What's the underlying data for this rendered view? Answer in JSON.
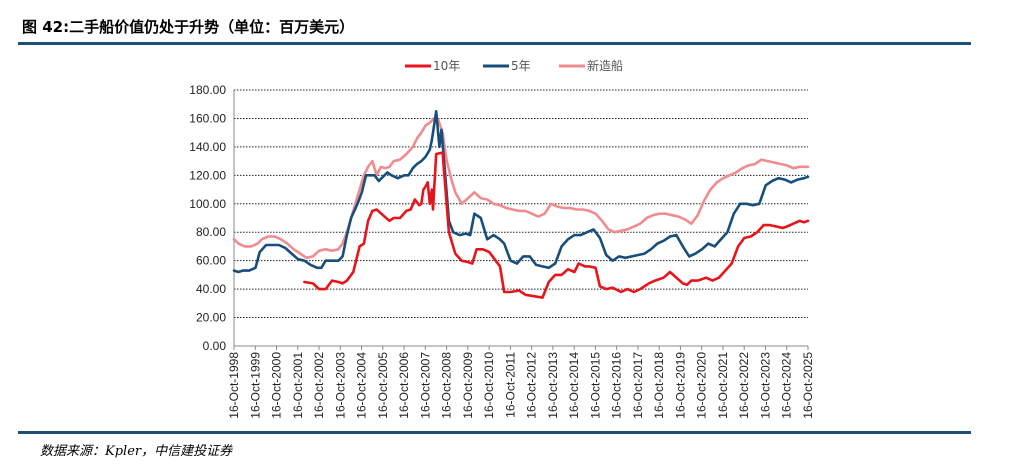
{
  "title": "图 42:二手船价值仍处于升势（单位：百万美元）",
  "source": "数据来源：Kpler，中信建投证券",
  "colors": {
    "series_10y": "#e8141c",
    "series_5y": "#174e7c",
    "series_new": "#f08c8f",
    "rule": "#1f4e79"
  },
  "chart_data": {
    "type": "line",
    "title": "",
    "xlabel": "",
    "ylabel": "",
    "ylim": [
      0,
      180
    ],
    "yticks": [
      "0.00",
      "20.00",
      "40.00",
      "60.00",
      "80.00",
      "100.00",
      "120.00",
      "140.00",
      "160.00",
      "180.00"
    ],
    "xlim": [
      1998.79,
      2025.79
    ],
    "xticks": [
      "16-Oct-1998",
      "16-Oct-1999",
      "16-Oct-2000",
      "16-Oct-2001",
      "16-Oct-2002",
      "16-Oct-2003",
      "16-Oct-2004",
      "16-Oct-2005",
      "16-Oct-2006",
      "16-Oct-2007",
      "16-Oct-2008",
      "16-Oct-2009",
      "16-Oct-2010",
      "16-Oct-2011",
      "16-Oct-2012",
      "16-Oct-2013",
      "16-Oct-2014",
      "16-Oct-2015",
      "16-Oct-2016",
      "16-Oct-2017",
      "16-Oct-2018",
      "16-Oct-2019",
      "16-Oct-2020",
      "16-Oct-2021",
      "16-Oct-2022",
      "16-Oct-2023",
      "16-Oct-2024",
      "16-Oct-2025"
    ],
    "grid": "horizontal-dotted",
    "legend_position": "top-center",
    "series": [
      {
        "name": "10年",
        "x": [
          2002.1,
          2002.5,
          2002.8,
          2003.1,
          2003.4,
          2003.7,
          2003.9,
          2004.1,
          2004.4,
          2004.7,
          2004.9,
          2005.1,
          2005.3,
          2005.5,
          2005.8,
          2006.1,
          2006.3,
          2006.6,
          2006.9,
          2007.1,
          2007.3,
          2007.5,
          2007.6,
          2007.7,
          2007.8,
          2007.9,
          2008.0,
          2008.1,
          2008.15,
          2008.3,
          2008.6,
          2008.9,
          2009.2,
          2009.5,
          2009.8,
          2010.0,
          2010.2,
          2010.5,
          2010.8,
          2011.1,
          2011.3,
          2011.5,
          2011.8,
          2012.2,
          2012.5,
          2012.9,
          2013.3,
          2013.6,
          2013.9,
          2014.2,
          2014.5,
          2014.8,
          2015.0,
          2015.3,
          2015.5,
          2015.8,
          2016.0,
          2016.3,
          2016.6,
          2017.0,
          2017.3,
          2017.6,
          2017.9,
          2018.3,
          2018.6,
          2019.0,
          2019.3,
          2019.6,
          2019.9,
          2020.1,
          2020.3,
          2020.6,
          2021.0,
          2021.3,
          2021.6,
          2021.9,
          2022.2,
          2022.5,
          2022.8,
          2023.1,
          2023.4,
          2023.7,
          2024.0,
          2024.3,
          2024.6,
          2024.8,
          2025.1,
          2025.4,
          2025.6,
          2025.79
        ],
        "values": [
          45,
          44,
          40,
          40,
          46,
          45,
          44,
          46,
          52,
          70,
          72,
          88,
          95,
          96,
          92,
          88,
          90,
          90,
          95,
          96,
          103,
          99,
          100,
          110,
          112,
          115,
          100,
          110,
          96,
          135,
          136,
          80,
          65,
          60,
          59,
          58,
          68,
          68,
          66,
          60,
          56,
          38,
          38,
          39,
          36,
          35,
          34,
          45,
          50,
          50,
          54,
          52,
          58,
          56,
          56,
          55,
          42,
          40,
          41,
          38,
          40,
          38,
          40,
          44,
          46,
          48,
          52,
          48,
          44,
          43,
          46,
          46,
          48,
          46,
          48,
          53,
          58,
          70,
          76,
          77,
          80,
          85,
          85,
          84,
          83,
          84,
          86,
          88,
          87,
          88
        ]
      },
      {
        "name": "5年",
        "x": [
          1998.79,
          1999.0,
          1999.2,
          1999.5,
          1999.8,
          2000.0,
          2000.3,
          2000.6,
          2000.9,
          2001.2,
          2001.5,
          2001.8,
          2002.1,
          2002.4,
          2002.7,
          2002.9,
          2003.1,
          2003.4,
          2003.7,
          2003.9,
          2004.1,
          2004.3,
          2004.6,
          2004.8,
          2005.0,
          2005.2,
          2005.4,
          2005.6,
          2005.8,
          2006.0,
          2006.2,
          2006.5,
          2006.8,
          2007.0,
          2007.2,
          2007.4,
          2007.6,
          2007.8,
          2008.0,
          2008.1,
          2008.3,
          2008.45,
          2008.55,
          2008.7,
          2008.9,
          2009.1,
          2009.4,
          2009.7,
          2009.9,
          2010.1,
          2010.4,
          2010.7,
          2011.0,
          2011.3,
          2011.5,
          2011.8,
          2012.1,
          2012.4,
          2012.7,
          2013.0,
          2013.3,
          2013.6,
          2013.9,
          2014.2,
          2014.5,
          2014.8,
          2015.1,
          2015.4,
          2015.7,
          2016.0,
          2016.3,
          2016.6,
          2016.9,
          2017.2,
          2017.5,
          2017.8,
          2018.1,
          2018.4,
          2018.7,
          2019.0,
          2019.3,
          2019.6,
          2019.9,
          2020.2,
          2020.5,
          2020.8,
          2021.1,
          2021.4,
          2021.7,
          2022.0,
          2022.3,
          2022.6,
          2022.9,
          2023.2,
          2023.5,
          2023.8,
          2024.1,
          2024.4,
          2024.7,
          2025.0,
          2025.3,
          2025.6,
          2025.79
        ],
        "values": [
          53,
          52,
          53,
          53,
          55,
          66,
          71,
          71,
          71,
          69,
          65,
          61,
          60,
          57,
          55,
          55,
          60,
          60,
          60,
          63,
          78,
          90,
          100,
          108,
          120,
          120,
          120,
          116,
          119,
          122,
          120,
          118,
          120,
          120,
          125,
          128,
          130,
          133,
          138,
          145,
          165,
          140,
          152,
          125,
          88,
          80,
          78,
          79,
          78,
          93,
          90,
          75,
          78,
          75,
          72,
          60,
          58,
          63,
          63,
          57,
          56,
          55,
          58,
          70,
          75,
          78,
          78,
          80,
          82,
          76,
          64,
          60,
          63,
          62,
          63,
          64,
          65,
          68,
          72,
          74,
          77,
          78,
          70,
          63,
          65,
          68,
          72,
          70,
          75,
          80,
          93,
          100,
          100,
          99,
          100,
          113,
          116,
          118,
          117,
          115,
          117,
          118,
          119
        ]
      },
      {
        "name": "新造船",
        "x": [
          1998.79,
          1999.0,
          1999.3,
          1999.6,
          1999.9,
          2000.1,
          2000.4,
          2000.7,
          2001.0,
          2001.3,
          2001.6,
          2001.9,
          2002.2,
          2002.5,
          2002.8,
          2003.1,
          2003.4,
          2003.7,
          2003.9,
          2004.1,
          2004.3,
          2004.5,
          2004.7,
          2004.9,
          2005.1,
          2005.3,
          2005.5,
          2005.7,
          2005.9,
          2006.1,
          2006.3,
          2006.6,
          2006.9,
          2007.2,
          2007.4,
          2007.6,
          2007.8,
          2008.0,
          2008.2,
          2008.4,
          2008.6,
          2008.8,
          2009.0,
          2009.2,
          2009.5,
          2009.8,
          2010.1,
          2010.4,
          2010.7,
          2011.0,
          2011.3,
          2011.6,
          2011.9,
          2012.2,
          2012.5,
          2012.8,
          2013.1,
          2013.4,
          2013.7,
          2014.0,
          2014.3,
          2014.6,
          2014.9,
          2015.2,
          2015.5,
          2015.8,
          2016.1,
          2016.4,
          2016.7,
          2017.0,
          2017.3,
          2017.6,
          2017.9,
          2018.2,
          2018.5,
          2018.8,
          2019.1,
          2019.4,
          2019.7,
          2020.0,
          2020.3,
          2020.6,
          2020.9,
          2021.2,
          2021.5,
          2021.8,
          2022.1,
          2022.4,
          2022.7,
          2023.0,
          2023.3,
          2023.6,
          2023.9,
          2024.2,
          2024.5,
          2024.8,
          2025.1,
          2025.4,
          2025.79
        ],
        "values": [
          75,
          72,
          70,
          70,
          72,
          75,
          77,
          77,
          75,
          72,
          68,
          65,
          62,
          63,
          67,
          68,
          67,
          68,
          72,
          80,
          90,
          100,
          110,
          120,
          126,
          130,
          120,
          126,
          125,
          126,
          130,
          131,
          135,
          140,
          146,
          150,
          155,
          157,
          160,
          159,
          150,
          130,
          118,
          108,
          100,
          104,
          108,
          104,
          103,
          100,
          99,
          97,
          96,
          95,
          95,
          93,
          91,
          93,
          100,
          98,
          97,
          97,
          96,
          96,
          95,
          93,
          88,
          82,
          80,
          81,
          82,
          84,
          86,
          90,
          92,
          93,
          93,
          92,
          91,
          89,
          86,
          92,
          102,
          110,
          115,
          118,
          120,
          122,
          125,
          127,
          128,
          131,
          130,
          129,
          128,
          127,
          125,
          126,
          126
        ]
      }
    ]
  }
}
